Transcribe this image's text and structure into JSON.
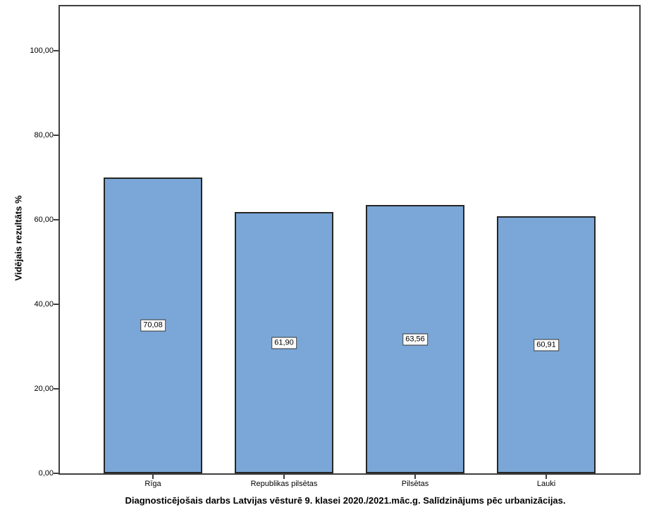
{
  "chart_data": {
    "type": "bar",
    "title": "Diagnosticējošais darbs Latvijas vēsturē 9. klasei 2020./2021.māc.g. Salīdzinājums pēc urbanizācijas.",
    "xlabel": "",
    "ylabel": "Vidējais rezultāts %",
    "categories": [
      "Rīga",
      "Republikas pilsētas",
      "Pilsētas",
      "Lauki"
    ],
    "values": [
      70.08,
      61.9,
      63.56,
      60.91
    ],
    "value_labels": [
      "70,08",
      "61,90",
      "63,56",
      "60,91"
    ],
    "value_label_position": "centered-inside-bar",
    "ytick_values": [
      0,
      20,
      40,
      60,
      80,
      100
    ],
    "ytick_labels": [
      "0,00",
      "20,00",
      "40,00",
      "60,00",
      "80,00",
      "100,00"
    ],
    "ylim": [
      0,
      110.5
    ],
    "grid": false,
    "legend": "none",
    "bar_color": "#7AA7D8",
    "bar_border_color": "#262626",
    "frame_color": "#3F3F3F",
    "background_color": "#FFFFFF",
    "text_color": "#000000"
  }
}
